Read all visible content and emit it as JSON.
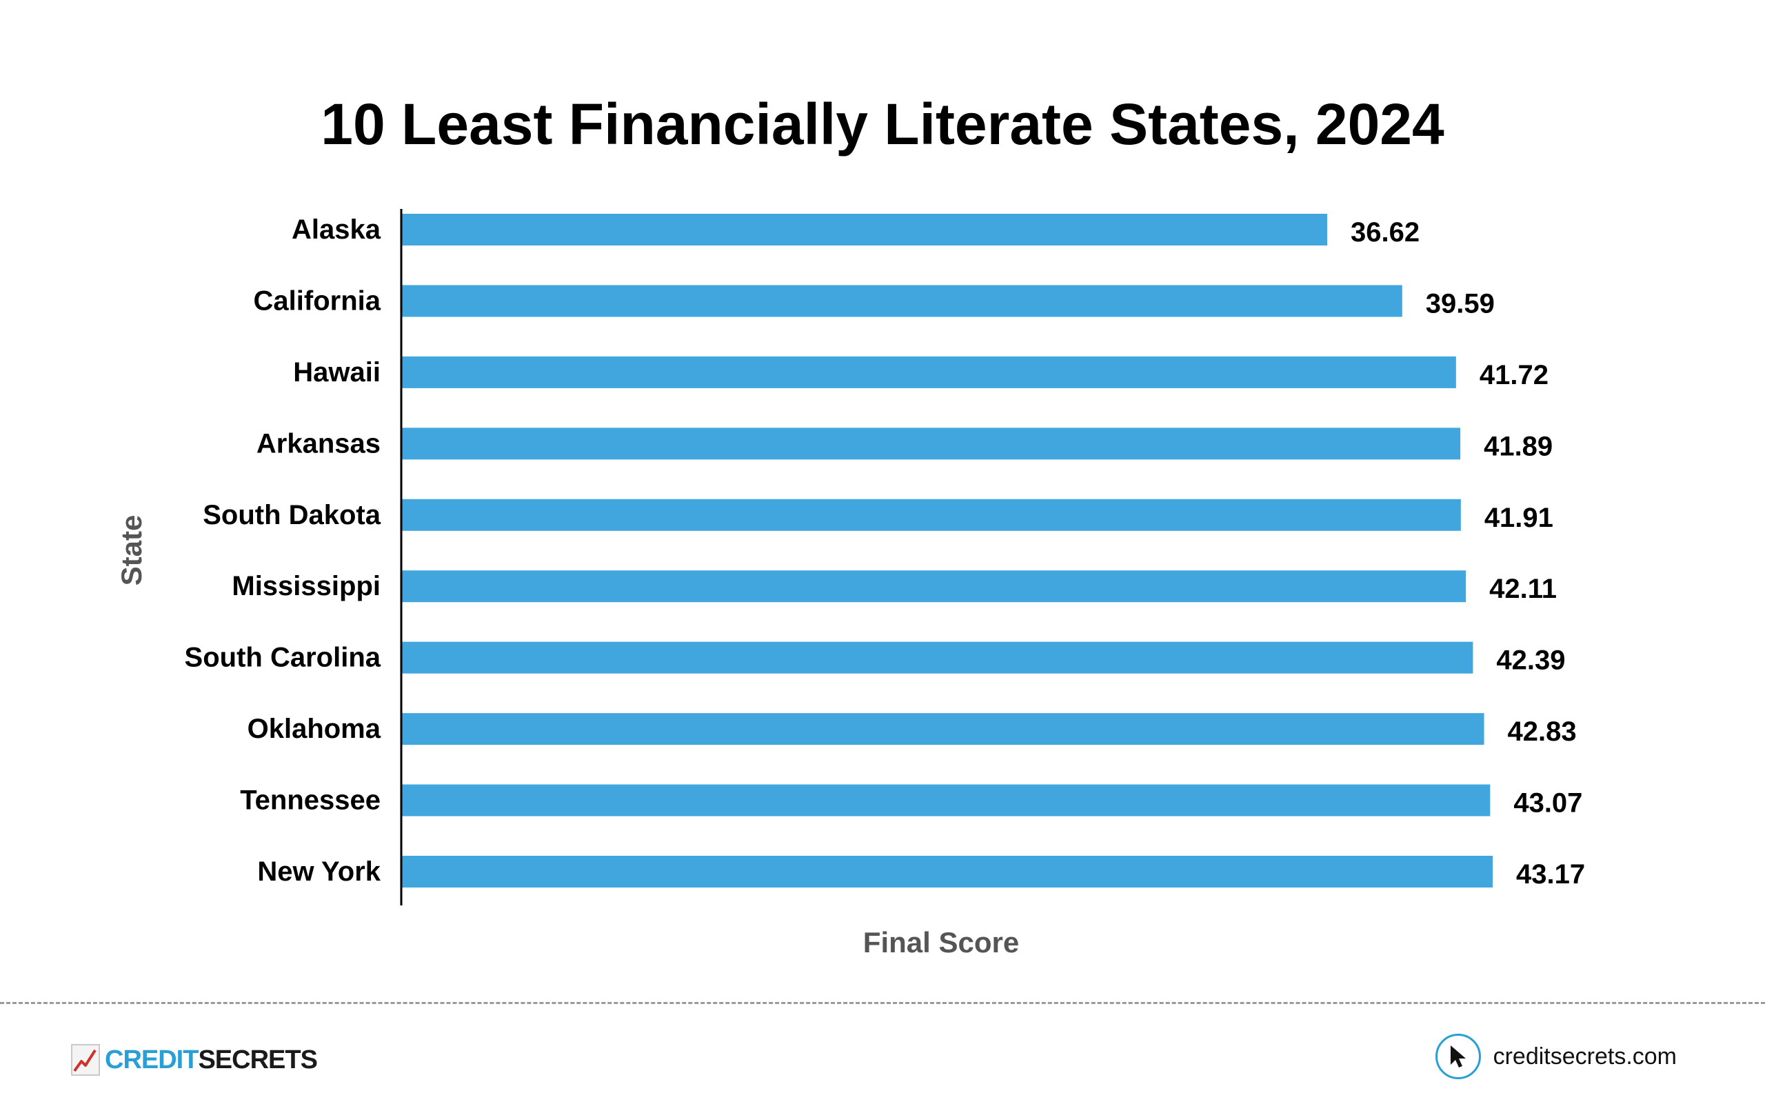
{
  "chart_data": {
    "type": "bar",
    "orientation": "horizontal",
    "title": "10 Least Financially Literate States, 2024",
    "xlabel": "Final Score",
    "ylabel": "State",
    "categories": [
      "Alaska",
      "California",
      "Hawaii",
      "Arkansas",
      "South Dakota",
      "Mississippi",
      "South Carolina",
      "Oklahoma",
      "Tennessee",
      "New York"
    ],
    "values": [
      36.62,
      39.59,
      41.72,
      41.89,
      41.91,
      42.11,
      42.39,
      42.83,
      43.07,
      43.17
    ],
    "value_labels": [
      "36.62",
      "39.59",
      "41.72",
      "41.89",
      "41.91",
      "42.11",
      "42.39",
      "42.83",
      "43.07",
      "43.17"
    ],
    "xlim": [
      0,
      43.17
    ],
    "grid": false,
    "legend": "none",
    "bar_color": "#41a6dd"
  },
  "footer": {
    "brand_credit": "CREDIT",
    "brand_secrets": "SECRETS",
    "website": "creditsecrets.com",
    "brand_color": "#2a9fd6"
  }
}
